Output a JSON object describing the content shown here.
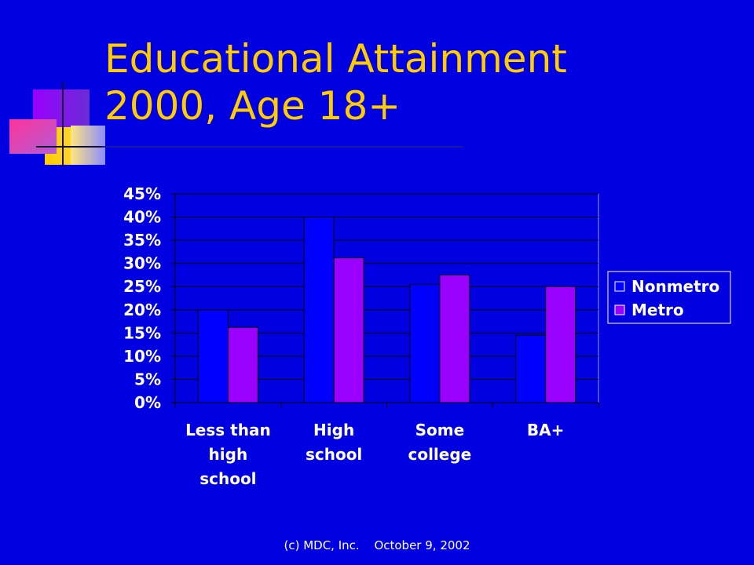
{
  "slide": {
    "title_lines": [
      "Educational Attainment",
      "2000, Age 18+"
    ],
    "footer_left": "(c) MDC, Inc.",
    "footer_right": "October 9, 2002"
  },
  "colors": {
    "background": "#0000e0",
    "title": "#ffcc00",
    "nonmetro": "#0000ff",
    "metro": "#9900ff"
  },
  "chart_data": {
    "type": "bar",
    "title": "",
    "xlabel": "",
    "ylabel": "",
    "categories": [
      [
        "Less than",
        "high",
        "school"
      ],
      [
        "High",
        "school"
      ],
      [
        "Some",
        "college"
      ],
      [
        "BA+"
      ]
    ],
    "series": [
      {
        "name": "Nonmetro",
        "color": "#0000ff",
        "values": [
          20,
          40,
          25.5,
          14.5
        ]
      },
      {
        "name": "Metro",
        "color": "#9900ff",
        "values": [
          16.2,
          31.2,
          27.5,
          25
        ]
      }
    ],
    "ylim": [
      0,
      45
    ],
    "yticks": [
      "0%",
      "5%",
      "10%",
      "15%",
      "20%",
      "25%",
      "30%",
      "35%",
      "40%",
      "45%"
    ],
    "grid": true,
    "legend": "right"
  }
}
